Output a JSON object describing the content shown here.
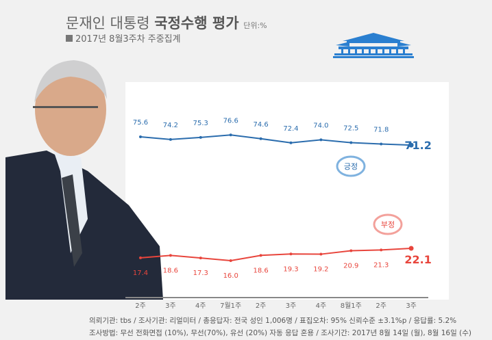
{
  "header": {
    "title_light": "문재인 대통령 ",
    "title_bold": "국정수행 평가",
    "unit": "단위:%",
    "subtitle": "2017년 8월3주차 주중집계"
  },
  "chart_data": {
    "type": "line",
    "categories": [
      "2주",
      "3주",
      "4주",
      "7월1주",
      "2주",
      "3주",
      "4주",
      "8월1주",
      "2주",
      "3주"
    ],
    "series": [
      {
        "name": "긍정",
        "color": "#2a6cad",
        "values": [
          75.6,
          74.2,
          75.3,
          76.6,
          74.6,
          72.4,
          74.0,
          72.5,
          71.8,
          71.2
        ]
      },
      {
        "name": "부정",
        "color": "#e8453c",
        "values": [
          17.4,
          18.6,
          17.3,
          16.0,
          18.6,
          19.3,
          19.2,
          20.9,
          21.3,
          22.1
        ]
      }
    ]
  },
  "footer": {
    "line1": "의뢰기관: tbs / 조사기관: 리얼미터 / 총응답자: 전국 성인 1,006명 / 표집오차: 95% 신뢰수준 ±3.1%p / 응답률: 5.2%",
    "line2": "조사방법: 무선 전화면접 (10%), 무선(70%), 유선 (20%) 자동 응답 혼용 / 조사기간: 2017년 8월 14일 (월), 8월 16일 (수)"
  }
}
